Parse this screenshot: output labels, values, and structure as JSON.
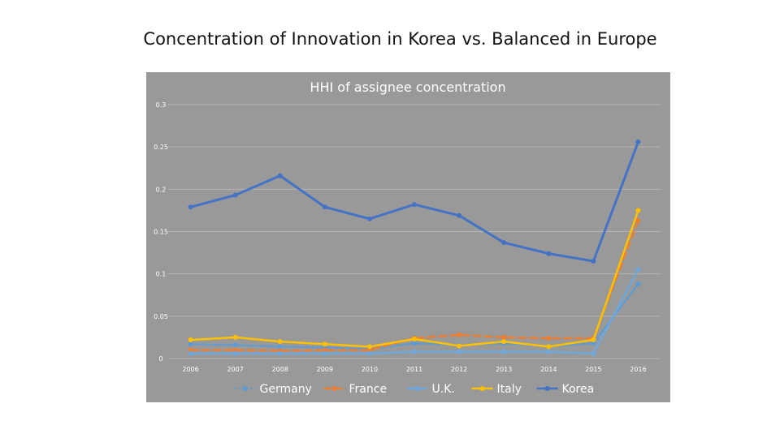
{
  "slide": {
    "title": "Concentration of Innovation in Korea vs. Balanced in Europe"
  },
  "chart_data": {
    "type": "line",
    "title": "HHI of assignee concentration",
    "xlabel": "",
    "ylabel": "",
    "categories": [
      "2006",
      "2007",
      "2008",
      "2009",
      "2010",
      "2011",
      "2012",
      "2013",
      "2014",
      "2015",
      "2016"
    ],
    "ylim": [
      0,
      0.3
    ],
    "yticks": [
      "0",
      "0.05",
      "0.1",
      "0.15",
      "0.2",
      "0.25",
      "0.3"
    ],
    "grid": true,
    "legend_position": "bottom",
    "background_color": "#999999",
    "series": [
      {
        "name": "Germany",
        "color": "#5B9BD5",
        "style": "dotted",
        "values": [
          0.017,
          0.016,
          0.014,
          0.013,
          0.011,
          0.018,
          0.016,
          0.018,
          0.014,
          0.018,
          0.088
        ]
      },
      {
        "name": "France",
        "color": "#ED7D31",
        "style": "dashed",
        "values": [
          0.01,
          0.01,
          0.009,
          0.01,
          0.01,
          0.024,
          0.028,
          0.025,
          0.024,
          0.024,
          0.163
        ]
      },
      {
        "name": "U.K.",
        "color": "#6FA8DC",
        "style": "solid",
        "values": [
          0.006,
          0.006,
          0.006,
          0.006,
          0.006,
          0.008,
          0.008,
          0.008,
          0.008,
          0.006,
          0.105
        ]
      },
      {
        "name": "Italy",
        "color": "#FFC000",
        "style": "solid",
        "values": [
          0.022,
          0.025,
          0.02,
          0.017,
          0.014,
          0.023,
          0.015,
          0.02,
          0.014,
          0.022,
          0.175
        ]
      },
      {
        "name": "Korea",
        "color": "#4472C4",
        "style": "solid",
        "values": [
          0.179,
          0.193,
          0.216,
          0.179,
          0.165,
          0.182,
          0.169,
          0.137,
          0.124,
          0.115,
          0.256
        ]
      }
    ]
  }
}
